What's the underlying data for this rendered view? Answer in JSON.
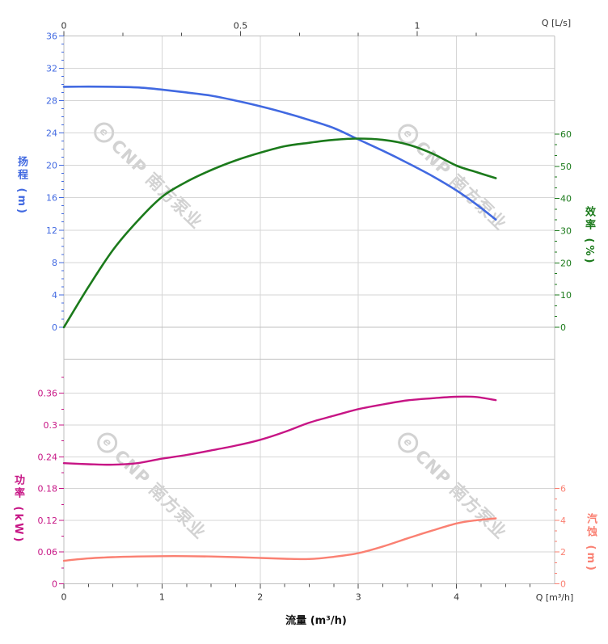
{
  "watermark": {
    "logo_char": "e",
    "text": "CNP 南方泵业"
  },
  "colors": {
    "head": "#4169E1",
    "efficiency": "#1B7A1B",
    "power": "#C71585",
    "npsh": "#FA8072",
    "grid": "#d6d6d6",
    "boundary": "#bfbfbf",
    "xtick": "#4d4d4d",
    "xlabel_text": "#333333"
  },
  "chart_data": [
    {
      "type": "line",
      "title": "Pump head and efficiency curves",
      "x_m3h": [
        0,
        0.25,
        0.5,
        0.75,
        1,
        1.25,
        1.5,
        1.75,
        2,
        2.25,
        2.5,
        2.75,
        3,
        3.25,
        3.5,
        3.75,
        4,
        4.2,
        4.4
      ],
      "series": [
        {
          "name": "扬程",
          "unit": "m",
          "axis": "left",
          "color_key": "head",
          "values": [
            29.7,
            29.72,
            29.7,
            29.62,
            29.35,
            29.0,
            28.6,
            28.0,
            27.3,
            26.5,
            25.6,
            24.6,
            23.2,
            21.8,
            20.3,
            18.7,
            16.9,
            15.2,
            13.3
          ]
        },
        {
          "name": "效率",
          "unit": "%",
          "axis": "right",
          "color_key": "efficiency",
          "values": [
            0,
            12.5,
            24,
            33,
            40.5,
            45.2,
            48.8,
            51.8,
            54.2,
            56.2,
            57.3,
            58.2,
            58.6,
            58.2,
            56.8,
            54.0,
            50.2,
            48.2,
            46.3
          ]
        }
      ],
      "left_axis": {
        "title": "扬程 (m)",
        "min": 0,
        "max": 36,
        "major": 4,
        "minor": 1,
        "tick_labels": [
          "0",
          "4",
          "8",
          "12",
          "16",
          "20",
          "24",
          "28",
          "32",
          "36"
        ]
      },
      "right_axis": {
        "title": "效率 (%)",
        "min": 0,
        "max": 60,
        "major": 10,
        "tick_labels": [
          "0",
          "10",
          "20",
          "30",
          "40",
          "50",
          "60"
        ]
      },
      "top_axis": {
        "title": "Q [L/s]",
        "tick_values": [
          0,
          0.5,
          1
        ],
        "tick_labels": [
          "0",
          "0.5",
          "1"
        ]
      }
    },
    {
      "type": "line",
      "title": "Pump power and NPSH curves",
      "x_m3h": [
        0,
        0.25,
        0.5,
        0.75,
        1,
        1.25,
        1.5,
        1.75,
        2,
        2.25,
        2.5,
        2.75,
        3,
        3.25,
        3.5,
        3.75,
        4,
        4.2,
        4.4
      ],
      "series": [
        {
          "name": "功率",
          "unit": "kW",
          "axis": "left",
          "color_key": "power",
          "values": [
            0.228,
            0.226,
            0.225,
            0.228,
            0.2365,
            0.2435,
            0.252,
            0.261,
            0.272,
            0.287,
            0.3045,
            0.3175,
            0.33,
            0.339,
            0.3465,
            0.3505,
            0.3535,
            0.353,
            0.347
          ]
        },
        {
          "name": "汽蚀",
          "unit": "m",
          "axis": "right",
          "color_key": "npsh",
          "values": [
            1.45,
            1.6,
            1.68,
            1.72,
            1.74,
            1.74,
            1.72,
            1.68,
            1.63,
            1.58,
            1.56,
            1.7,
            1.93,
            2.35,
            2.86,
            3.35,
            3.8,
            4.0,
            4.12
          ]
        }
      ],
      "left_axis": {
        "title": "功率 (kW)",
        "min": 0,
        "max": 0.36,
        "major": 0.06,
        "tick_labels": [
          "0",
          "0.06",
          "0.12",
          "0.18",
          "0.24",
          "0.3",
          "0.36"
        ]
      },
      "right_axis": {
        "title": "汽蚀 (m)",
        "min": 0,
        "max": 6,
        "major": 2,
        "tick_labels": [
          "0",
          "2",
          "4",
          "6"
        ]
      },
      "bottom_axis": {
        "title": "流量 (m³/h)",
        "corner": "Q [m³/h]",
        "tick_values": [
          0,
          1,
          2,
          3,
          4
        ],
        "tick_labels": [
          "0",
          "1",
          "2",
          "3",
          "4"
        ]
      }
    }
  ]
}
